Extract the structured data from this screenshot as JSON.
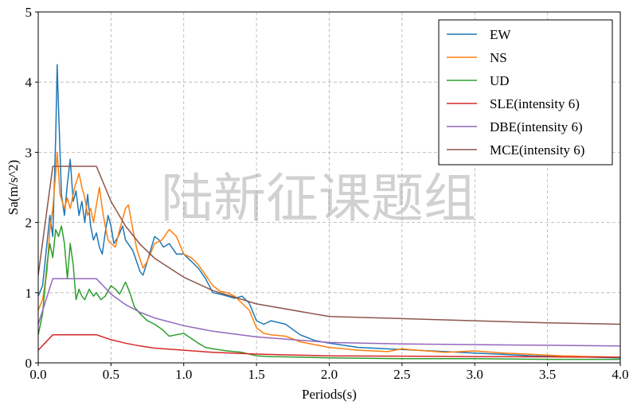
{
  "watermark": "陆新征课题组",
  "chart_data": {
    "type": "line",
    "title": "",
    "xlabel": "Periods(s)",
    "ylabel": "Sa(m/s^2)",
    "xlim": [
      0,
      4
    ],
    "ylim": [
      0,
      5
    ],
    "xticks": [
      "0.0",
      "0.5",
      "1.0",
      "1.5",
      "2.0",
      "2.5",
      "3.0",
      "3.5",
      "4.0"
    ],
    "yticks": [
      "0",
      "1",
      "2",
      "3",
      "4",
      "5"
    ],
    "grid": true,
    "legend_position": "top-right",
    "series": [
      {
        "name": "EW",
        "color": "#1f77b4",
        "points": [
          [
            0,
            0.95
          ],
          [
            0.03,
            1.1
          ],
          [
            0.06,
            1.7
          ],
          [
            0.08,
            2.1
          ],
          [
            0.1,
            1.8
          ],
          [
            0.12,
            3.2
          ],
          [
            0.13,
            4.25
          ],
          [
            0.14,
            3.6
          ],
          [
            0.16,
            2.4
          ],
          [
            0.18,
            2.1
          ],
          [
            0.2,
            2.55
          ],
          [
            0.22,
            2.9
          ],
          [
            0.24,
            2.3
          ],
          [
            0.26,
            2.45
          ],
          [
            0.28,
            2.1
          ],
          [
            0.3,
            2.3
          ],
          [
            0.32,
            2.0
          ],
          [
            0.34,
            2.4
          ],
          [
            0.36,
            1.95
          ],
          [
            0.38,
            1.75
          ],
          [
            0.4,
            1.85
          ],
          [
            0.42,
            1.65
          ],
          [
            0.44,
            1.55
          ],
          [
            0.46,
            1.85
          ],
          [
            0.48,
            2.1
          ],
          [
            0.5,
            1.95
          ],
          [
            0.52,
            1.7
          ],
          [
            0.55,
            1.8
          ],
          [
            0.58,
            1.95
          ],
          [
            0.6,
            1.75
          ],
          [
            0.65,
            1.6
          ],
          [
            0.7,
            1.3
          ],
          [
            0.72,
            1.25
          ],
          [
            0.75,
            1.45
          ],
          [
            0.8,
            1.8
          ],
          [
            0.83,
            1.75
          ],
          [
            0.86,
            1.65
          ],
          [
            0.9,
            1.7
          ],
          [
            0.95,
            1.55
          ],
          [
            1.0,
            1.55
          ],
          [
            1.05,
            1.45
          ],
          [
            1.1,
            1.35
          ],
          [
            1.15,
            1.2
          ],
          [
            1.2,
            1.0
          ],
          [
            1.25,
            0.98
          ],
          [
            1.3,
            0.95
          ],
          [
            1.35,
            0.92
          ],
          [
            1.4,
            0.95
          ],
          [
            1.45,
            0.85
          ],
          [
            1.5,
            0.6
          ],
          [
            1.55,
            0.55
          ],
          [
            1.6,
            0.6
          ],
          [
            1.7,
            0.55
          ],
          [
            1.8,
            0.4
          ],
          [
            1.9,
            0.32
          ],
          [
            2.0,
            0.28
          ],
          [
            2.2,
            0.22
          ],
          [
            2.4,
            0.2
          ],
          [
            2.6,
            0.18
          ],
          [
            2.8,
            0.16
          ],
          [
            3.0,
            0.14
          ],
          [
            3.2,
            0.12
          ],
          [
            3.4,
            0.1
          ],
          [
            3.6,
            0.09
          ],
          [
            3.8,
            0.08
          ],
          [
            4.0,
            0.07
          ]
        ]
      },
      {
        "name": "NS",
        "color": "#ff7f0e",
        "points": [
          [
            0,
            0.75
          ],
          [
            0.03,
            0.9
          ],
          [
            0.06,
            1.3
          ],
          [
            0.08,
            1.9
          ],
          [
            0.1,
            2.2
          ],
          [
            0.12,
            2.7
          ],
          [
            0.13,
            3.0
          ],
          [
            0.15,
            2.4
          ],
          [
            0.18,
            2.2
          ],
          [
            0.2,
            2.35
          ],
          [
            0.22,
            2.2
          ],
          [
            0.25,
            2.5
          ],
          [
            0.28,
            2.7
          ],
          [
            0.3,
            2.5
          ],
          [
            0.32,
            2.35
          ],
          [
            0.34,
            2.1
          ],
          [
            0.36,
            2.2
          ],
          [
            0.38,
            2.0
          ],
          [
            0.4,
            2.25
          ],
          [
            0.42,
            2.5
          ],
          [
            0.44,
            2.2
          ],
          [
            0.46,
            1.95
          ],
          [
            0.48,
            1.75
          ],
          [
            0.5,
            1.7
          ],
          [
            0.53,
            1.65
          ],
          [
            0.56,
            1.9
          ],
          [
            0.6,
            2.2
          ],
          [
            0.62,
            2.25
          ],
          [
            0.65,
            1.9
          ],
          [
            0.68,
            1.6
          ],
          [
            0.72,
            1.35
          ],
          [
            0.75,
            1.45
          ],
          [
            0.8,
            1.7
          ],
          [
            0.85,
            1.75
          ],
          [
            0.9,
            1.9
          ],
          [
            0.95,
            1.8
          ],
          [
            1.0,
            1.55
          ],
          [
            1.05,
            1.5
          ],
          [
            1.1,
            1.4
          ],
          [
            1.15,
            1.25
          ],
          [
            1.2,
            1.1
          ],
          [
            1.25,
            1.02
          ],
          [
            1.3,
            1.0
          ],
          [
            1.35,
            0.95
          ],
          [
            1.4,
            0.85
          ],
          [
            1.45,
            0.75
          ],
          [
            1.5,
            0.5
          ],
          [
            1.55,
            0.42
          ],
          [
            1.6,
            0.4
          ],
          [
            1.7,
            0.38
          ],
          [
            1.8,
            0.3
          ],
          [
            1.9,
            0.26
          ],
          [
            2.0,
            0.22
          ],
          [
            2.2,
            0.18
          ],
          [
            2.4,
            0.16
          ],
          [
            2.5,
            0.2
          ],
          [
            2.6,
            0.18
          ],
          [
            2.8,
            0.15
          ],
          [
            3.0,
            0.17
          ],
          [
            3.2,
            0.14
          ],
          [
            3.4,
            0.12
          ],
          [
            3.6,
            0.1
          ],
          [
            3.8,
            0.09
          ],
          [
            4.0,
            0.08
          ]
        ]
      },
      {
        "name": "UD",
        "color": "#2ca02c",
        "points": [
          [
            0,
            0.4
          ],
          [
            0.03,
            0.7
          ],
          [
            0.06,
            1.4
          ],
          [
            0.08,
            1.7
          ],
          [
            0.1,
            1.5
          ],
          [
            0.12,
            1.9
          ],
          [
            0.14,
            1.8
          ],
          [
            0.16,
            1.95
          ],
          [
            0.18,
            1.7
          ],
          [
            0.2,
            1.2
          ],
          [
            0.22,
            1.7
          ],
          [
            0.24,
            1.4
          ],
          [
            0.26,
            0.9
          ],
          [
            0.28,
            1.05
          ],
          [
            0.3,
            0.95
          ],
          [
            0.32,
            0.9
          ],
          [
            0.35,
            1.05
          ],
          [
            0.38,
            0.95
          ],
          [
            0.4,
            1.0
          ],
          [
            0.43,
            0.9
          ],
          [
            0.46,
            0.95
          ],
          [
            0.5,
            1.1
          ],
          [
            0.53,
            1.05
          ],
          [
            0.56,
            0.98
          ],
          [
            0.6,
            1.15
          ],
          [
            0.63,
            1.0
          ],
          [
            0.66,
            0.8
          ],
          [
            0.7,
            0.7
          ],
          [
            0.75,
            0.6
          ],
          [
            0.8,
            0.55
          ],
          [
            0.85,
            0.48
          ],
          [
            0.9,
            0.38
          ],
          [
            0.95,
            0.4
          ],
          [
            1.0,
            0.42
          ],
          [
            1.05,
            0.35
          ],
          [
            1.1,
            0.28
          ],
          [
            1.15,
            0.22
          ],
          [
            1.2,
            0.2
          ],
          [
            1.3,
            0.17
          ],
          [
            1.4,
            0.15
          ],
          [
            1.5,
            0.1
          ],
          [
            1.6,
            0.09
          ],
          [
            1.8,
            0.08
          ],
          [
            2.0,
            0.07
          ],
          [
            2.5,
            0.06
          ],
          [
            3.0,
            0.06
          ],
          [
            3.5,
            0.05
          ],
          [
            4.0,
            0.05
          ]
        ]
      },
      {
        "name": "SLE(intensity 6)",
        "color": "#d62728",
        "points": [
          [
            0,
            0.18
          ],
          [
            0.1,
            0.4
          ],
          [
            0.4,
            0.4
          ],
          [
            0.5,
            0.33
          ],
          [
            0.6,
            0.28
          ],
          [
            0.7,
            0.24
          ],
          [
            0.8,
            0.21
          ],
          [
            1.0,
            0.18
          ],
          [
            1.2,
            0.15
          ],
          [
            1.5,
            0.125
          ],
          [
            2.0,
            0.1
          ],
          [
            2.5,
            0.095
          ],
          [
            3.0,
            0.09
          ],
          [
            3.5,
            0.085
          ],
          [
            4.0,
            0.08
          ]
        ]
      },
      {
        "name": "DBE(intensity 6)",
        "color": "#9467bd",
        "points": [
          [
            0,
            0.55
          ],
          [
            0.1,
            1.2
          ],
          [
            0.4,
            1.2
          ],
          [
            0.5,
            0.98
          ],
          [
            0.6,
            0.83
          ],
          [
            0.7,
            0.72
          ],
          [
            0.8,
            0.64
          ],
          [
            1.0,
            0.53
          ],
          [
            1.2,
            0.45
          ],
          [
            1.5,
            0.37
          ],
          [
            2.0,
            0.29
          ],
          [
            2.5,
            0.27
          ],
          [
            3.0,
            0.26
          ],
          [
            3.5,
            0.25
          ],
          [
            4.0,
            0.24
          ]
        ]
      },
      {
        "name": "MCE(intensity 6)",
        "color": "#8c564b",
        "points": [
          [
            0,
            1.25
          ],
          [
            0.1,
            2.8
          ],
          [
            0.4,
            2.8
          ],
          [
            0.5,
            2.3
          ],
          [
            0.6,
            1.95
          ],
          [
            0.7,
            1.69
          ],
          [
            0.8,
            1.49
          ],
          [
            1.0,
            1.22
          ],
          [
            1.2,
            1.03
          ],
          [
            1.5,
            0.84
          ],
          [
            2.0,
            0.66
          ],
          [
            2.5,
            0.63
          ],
          [
            3.0,
            0.6
          ],
          [
            3.5,
            0.57
          ],
          [
            4.0,
            0.55
          ]
        ]
      }
    ]
  }
}
